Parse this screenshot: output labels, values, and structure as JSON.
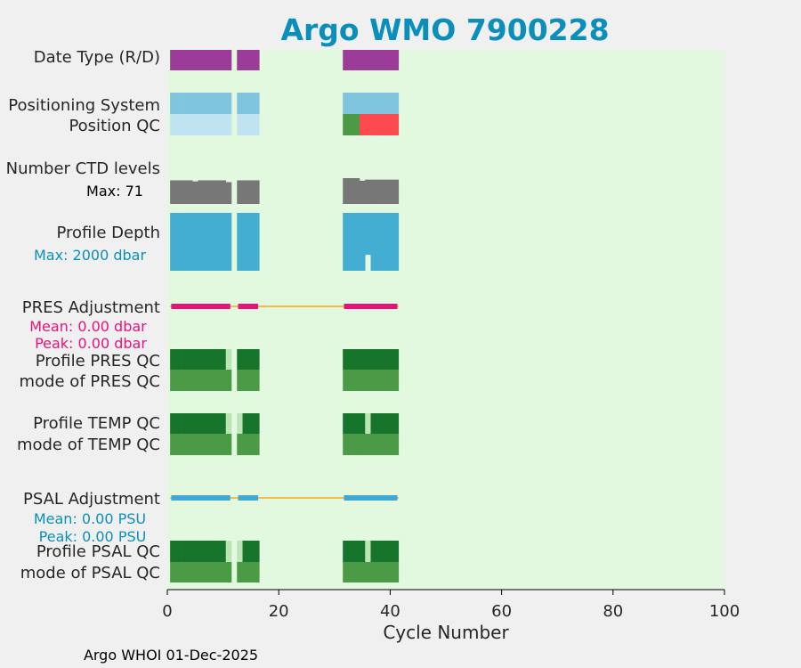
{
  "chart_data": {
    "type": "heatmap",
    "title": "Argo WMO 7900228",
    "xlabel": "Cycle Number",
    "xlim": [
      0,
      100
    ],
    "xticks": [
      0,
      20,
      40,
      60,
      80,
      100
    ],
    "footer": "Argo WHOI 01-Dec-2025",
    "colors": {
      "background": "#e3f9df",
      "title": "#0b8fba",
      "date_type": "#9b3c99",
      "positioning": "#80c5e0",
      "positioning_light": "#bfe3f1",
      "qc_good": "#4a9a46",
      "qc_good_dark": "#17752b",
      "qc_bad": "#fd4a50",
      "qc_light": "#bde4b4",
      "ctd_levels": "#777777",
      "profile_depth": "#43aed2",
      "pres_adjust": "#e8127c",
      "psal_adjust": "#41a8d3",
      "zero_line": "#f4bc48"
    },
    "segments": [
      [
        1,
        11
      ],
      [
        13,
        16
      ],
      [
        32,
        41
      ]
    ],
    "rows": {
      "date_type": {
        "label": "Date Type (R/D)"
      },
      "positioning_system": {
        "label": "Positioning System"
      },
      "position_qc": {
        "label": "Position QC",
        "bad_cycles": [
          35,
          41
        ]
      },
      "ctd_levels": {
        "label": "Number CTD levels",
        "max_label": "Max: 71",
        "max": 71,
        "values": [
          [
            1,
            65
          ],
          [
            2,
            65
          ],
          [
            3,
            65
          ],
          [
            4,
            65
          ],
          [
            5,
            62
          ],
          [
            6,
            65
          ],
          [
            7,
            65
          ],
          [
            8,
            65
          ],
          [
            9,
            65
          ],
          [
            10,
            65
          ],
          [
            11,
            60
          ],
          [
            13,
            65
          ],
          [
            14,
            65
          ],
          [
            15,
            65
          ],
          [
            16,
            65
          ],
          [
            32,
            71
          ],
          [
            33,
            71
          ],
          [
            34,
            71
          ],
          [
            35,
            64
          ],
          [
            36,
            67
          ],
          [
            37,
            67
          ],
          [
            38,
            67
          ],
          [
            39,
            67
          ],
          [
            40,
            67
          ],
          [
            41,
            67
          ]
        ]
      },
      "profile_depth": {
        "label": "Profile Depth",
        "max_label": "Max: 2000 dbar",
        "max": 2000,
        "values": [
          [
            36,
            1450
          ]
        ],
        "default": 2000
      },
      "pres_adjustment": {
        "label": "PRES Adjustment",
        "mean_label": "Mean: 0.00 dbar",
        "peak_label": "Peak: 0.00 dbar"
      },
      "profile_pres_qc": {
        "label": "Profile PRES QC",
        "light_cycles": [
          11
        ]
      },
      "mode_pres_qc": {
        "label": "mode of PRES QC"
      },
      "profile_temp_qc": {
        "label": "Profile TEMP QC",
        "light_cycles": [
          11,
          13,
          36
        ]
      },
      "mode_temp_qc": {
        "label": "mode of TEMP QC"
      },
      "psal_adjustment": {
        "label": "PSAL Adjustment",
        "mean_label": "Mean: 0.00 PSU",
        "peak_label": "Peak: 0.00 PSU"
      },
      "profile_psal_qc": {
        "label": "Profile PSAL QC",
        "light_cycles": [
          11,
          13,
          36
        ]
      },
      "mode_psal_qc": {
        "label": "mode of PSAL QC"
      }
    }
  }
}
